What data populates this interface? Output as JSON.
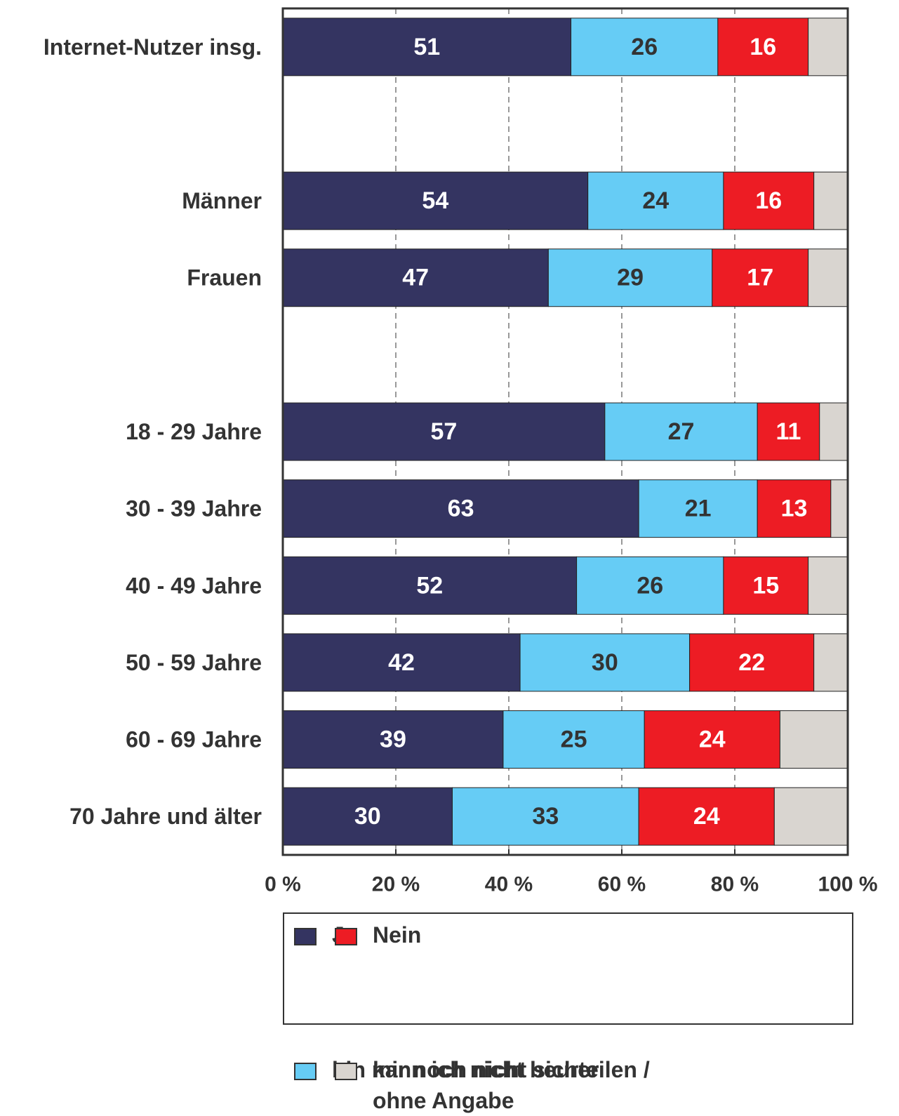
{
  "chart_data": {
    "type": "stacked-bar-horizontal",
    "categories": [
      "Internet-Nutzer insg.",
      null,
      "Männer",
      "Frauen",
      null,
      "18 - 29 Jahre",
      "30 - 39 Jahre",
      "40 - 49 Jahre",
      "50 - 59 Jahre",
      "60 - 69 Jahre",
      "70 Jahre und älter"
    ],
    "series": [
      {
        "name": "Ja",
        "color": "#343461",
        "label_color": "#ffffff",
        "values": [
          51,
          null,
          54,
          47,
          null,
          57,
          63,
          52,
          42,
          39,
          30
        ]
      },
      {
        "name": "bin mir noch nicht sicher",
        "color": "#66ccf5",
        "label_color": "#333333",
        "values": [
          26,
          null,
          24,
          29,
          null,
          27,
          21,
          26,
          30,
          25,
          33
        ]
      },
      {
        "name": "Nein",
        "color": "#ed1c24",
        "label_color": "#ffffff",
        "values": [
          16,
          null,
          16,
          17,
          null,
          11,
          13,
          15,
          22,
          24,
          24
        ]
      },
      {
        "name": "kann ich nicht beurteilen / ohne Angabe",
        "color": "#d9d5d0",
        "values": [
          7,
          null,
          6,
          7,
          null,
          5,
          3,
          7,
          6,
          12,
          13
        ]
      }
    ],
    "xlim": [
      0,
      100
    ],
    "xticks": [
      {
        "value": 0,
        "label": "0 %"
      },
      {
        "value": 20,
        "label": "20 %"
      },
      {
        "value": 40,
        "label": "40 %"
      },
      {
        "value": 60,
        "label": "60 %"
      },
      {
        "value": 80,
        "label": "80 %"
      },
      {
        "value": 100,
        "label": "100 %"
      }
    ],
    "grid": true
  }
}
